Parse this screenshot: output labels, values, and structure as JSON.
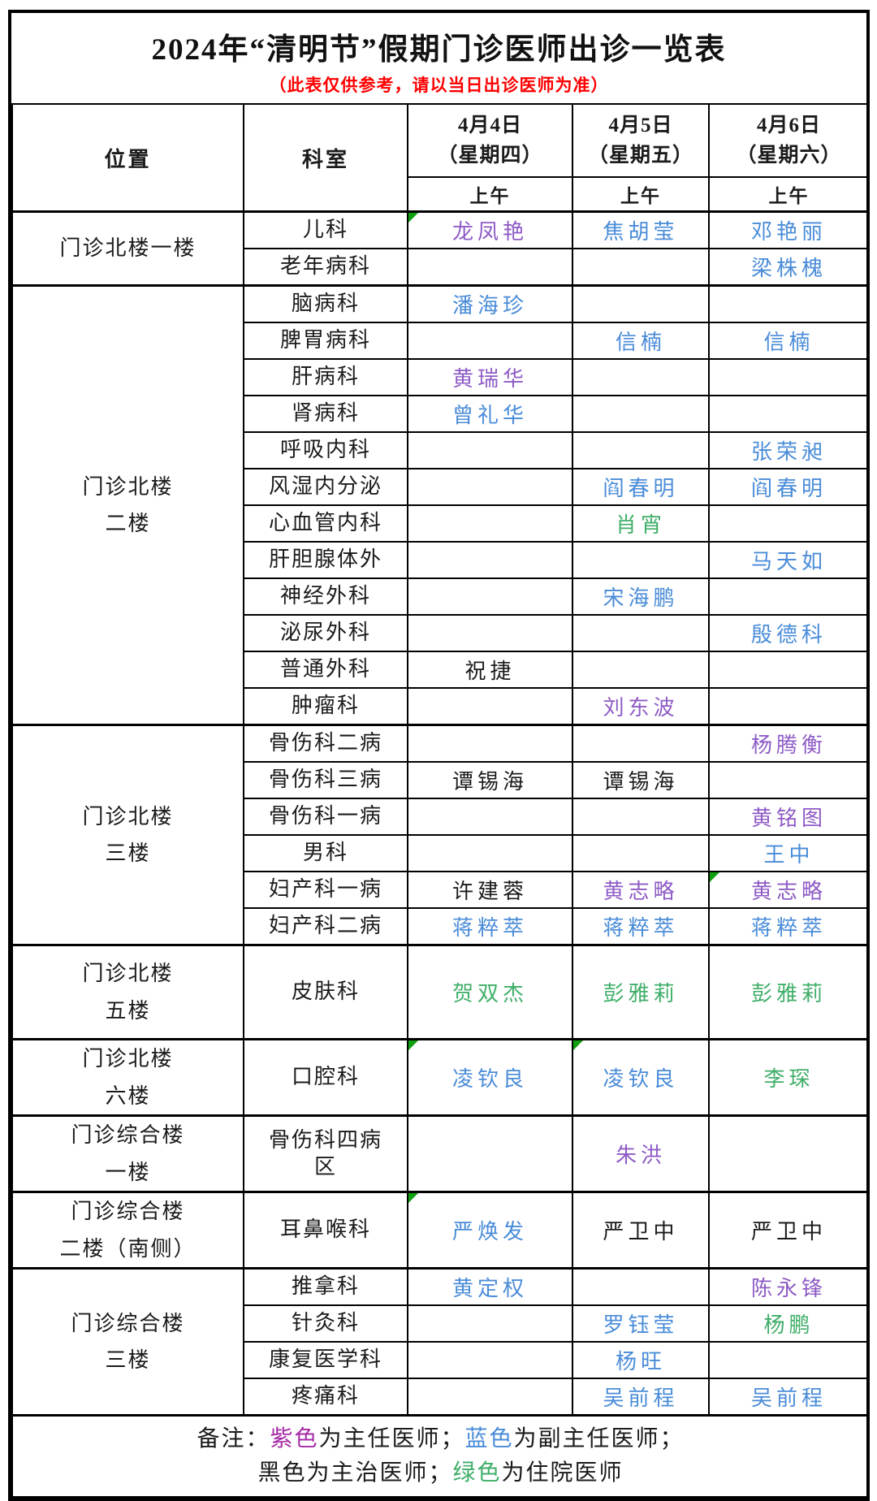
{
  "title": "2024年“清明节”假期门诊医师出诊一览表",
  "subtitle": "（此表仅供参考，请以当日出诊医师为准）",
  "colors": {
    "chief_purple": "#8E5BC5",
    "associate_blue": "#4A8CD8",
    "attending_black": "#1B1B1B",
    "resident_green": "#3FAE68",
    "legend_purple": "#A62BA6",
    "subtitle_red": "#FE0000",
    "marker_green": "#0FA00F",
    "border_black": "#000000"
  },
  "header": {
    "location": "位置",
    "department": "科室",
    "days": [
      {
        "date": "4月4日",
        "weekday": "（星期四）",
        "session": "上午"
      },
      {
        "date": "4月5日",
        "weekday": "（星期五）",
        "session": "上午"
      },
      {
        "date": "4月6日",
        "weekday": "（星期六）",
        "session": "上午"
      }
    ]
  },
  "groups": [
    {
      "location_lines": [
        "门诊北楼一楼"
      ],
      "rows": [
        {
          "department": "儿科",
          "cells": [
            {
              "name": "龙凤艳",
              "rank": "chief",
              "marker": true
            },
            {
              "name": "焦胡莹",
              "rank": "associate"
            },
            {
              "name": "邓艳丽",
              "rank": "associate"
            }
          ]
        },
        {
          "department": "老年病科",
          "cells": [
            null,
            null,
            {
              "name": "梁株槐",
              "rank": "associate"
            }
          ]
        }
      ]
    },
    {
      "location_lines": [
        "门诊北楼",
        "二楼"
      ],
      "rows": [
        {
          "department": "脑病科",
          "cells": [
            {
              "name": "潘海珍",
              "rank": "associate"
            },
            null,
            null
          ]
        },
        {
          "department": "脾胃病科",
          "cells": [
            null,
            {
              "name": "信楠",
              "rank": "associate"
            },
            {
              "name": "信楠",
              "rank": "associate"
            }
          ]
        },
        {
          "department": "肝病科",
          "cells": [
            {
              "name": "黄瑞华",
              "rank": "chief"
            },
            null,
            null
          ]
        },
        {
          "department": "肾病科",
          "cells": [
            {
              "name": "曾礼华",
              "rank": "associate"
            },
            null,
            null
          ]
        },
        {
          "department": "呼吸内科",
          "cells": [
            null,
            null,
            {
              "name": "张荣昶",
              "rank": "associate"
            }
          ]
        },
        {
          "department": "风湿内分泌",
          "cells": [
            null,
            {
              "name": "阎春明",
              "rank": "associate"
            },
            {
              "name": "阎春明",
              "rank": "associate"
            }
          ]
        },
        {
          "department": "心血管内科",
          "cells": [
            null,
            {
              "name": "肖宵",
              "rank": "resident"
            },
            null
          ]
        },
        {
          "department": "肝胆腺体外",
          "cells": [
            null,
            null,
            {
              "name": "马天如",
              "rank": "associate"
            }
          ]
        },
        {
          "department": "神经外科",
          "cells": [
            null,
            {
              "name": "宋海鹏",
              "rank": "associate"
            },
            null
          ]
        },
        {
          "department": "泌尿外科",
          "cells": [
            null,
            null,
            {
              "name": "殷德科",
              "rank": "associate"
            }
          ]
        },
        {
          "department": "普通外科",
          "cells": [
            {
              "name": "祝捷",
              "rank": "attending"
            },
            null,
            null
          ]
        },
        {
          "department": "肿瘤科",
          "cells": [
            null,
            {
              "name": "刘东波",
              "rank": "chief"
            },
            null
          ]
        }
      ]
    },
    {
      "location_lines": [
        "门诊北楼",
        "三楼"
      ],
      "rows": [
        {
          "department": "骨伤科二病",
          "cells": [
            null,
            null,
            {
              "name": "杨腾衡",
              "rank": "chief"
            }
          ]
        },
        {
          "department": "骨伤科三病",
          "cells": [
            {
              "name": "谭锡海",
              "rank": "attending"
            },
            {
              "name": "谭锡海",
              "rank": "attending"
            },
            null
          ]
        },
        {
          "department": "骨伤科一病",
          "cells": [
            null,
            null,
            {
              "name": "黄铭图",
              "rank": "chief"
            }
          ]
        },
        {
          "department": "男科",
          "cells": [
            null,
            null,
            {
              "name": "王中",
              "rank": "associate"
            }
          ]
        },
        {
          "department": "妇产科一病",
          "cells": [
            {
              "name": "许建蓉",
              "rank": "attending"
            },
            {
              "name": "黄志略",
              "rank": "chief"
            },
            {
              "name": "黄志略",
              "rank": "chief",
              "marker": true
            }
          ]
        },
        {
          "department": "妇产科二病",
          "cells": [
            {
              "name": "蒋粹萃",
              "rank": "associate"
            },
            {
              "name": "蒋粹萃",
              "rank": "associate"
            },
            {
              "name": "蒋粹萃",
              "rank": "associate"
            }
          ]
        }
      ]
    },
    {
      "location_lines": [
        "门诊北楼",
        "五楼"
      ],
      "rows": [
        {
          "department": "皮肤科",
          "cells": [
            {
              "name": "贺双杰",
              "rank": "resident"
            },
            {
              "name": "彭雅莉",
              "rank": "resident"
            },
            {
              "name": "彭雅莉",
              "rank": "resident"
            }
          ]
        }
      ]
    },
    {
      "location_lines": [
        "门诊北楼",
        "六楼"
      ],
      "rows": [
        {
          "department": "口腔科",
          "cells": [
            {
              "name": "凌钦良",
              "rank": "associate",
              "marker": true
            },
            {
              "name": "凌钦良",
              "rank": "associate",
              "marker": true
            },
            {
              "name": "李琛",
              "rank": "resident"
            }
          ]
        }
      ]
    },
    {
      "location_lines": [
        "门诊综合楼",
        "一楼"
      ],
      "rows": [
        {
          "department": "骨伤科四病区",
          "cells": [
            null,
            {
              "name": "朱洪",
              "rank": "chief"
            },
            null
          ]
        }
      ]
    },
    {
      "location_lines": [
        "门诊综合楼",
        "二楼（南侧）"
      ],
      "rows": [
        {
          "department": "耳鼻喉科",
          "cells": [
            {
              "name": "严焕发",
              "rank": "associate",
              "marker": true
            },
            {
              "name": "严卫中",
              "rank": "attending"
            },
            {
              "name": "严卫中",
              "rank": "attending"
            }
          ]
        }
      ]
    },
    {
      "location_lines": [
        "门诊综合楼",
        "三楼"
      ],
      "rows": [
        {
          "department": "推拿科",
          "cells": [
            {
              "name": "黄定权",
              "rank": "associate"
            },
            null,
            {
              "name": "陈永锋",
              "rank": "chief"
            }
          ]
        },
        {
          "department": "针灸科",
          "cells": [
            null,
            {
              "name": "罗钰莹",
              "rank": "associate"
            },
            {
              "name": "杨鹏",
              "rank": "resident"
            }
          ]
        },
        {
          "department": "康复医学科",
          "cells": [
            null,
            {
              "name": "杨旺",
              "rank": "associate"
            },
            null
          ]
        },
        {
          "department": "疼痛科",
          "cells": [
            null,
            {
              "name": "吴前程",
              "rank": "associate"
            },
            {
              "name": "吴前程",
              "rank": "associate"
            }
          ]
        }
      ]
    }
  ],
  "footer": {
    "lines": [
      [
        {
          "text": "备注：",
          "color": "attending_black"
        },
        {
          "text": "紫色",
          "color": "legend_purple"
        },
        {
          "text": "为主任医师；",
          "color": "attending_black"
        },
        {
          "text": "蓝色",
          "color": "associate_blue"
        },
        {
          "text": "为副主任医师；",
          "color": "attending_black"
        }
      ],
      [
        {
          "text": "黑色为主治医师；",
          "color": "attending_black"
        },
        {
          "text": "绿色",
          "color": "resident_green"
        },
        {
          "text": "为住院医师",
          "color": "attending_black"
        }
      ]
    ]
  }
}
